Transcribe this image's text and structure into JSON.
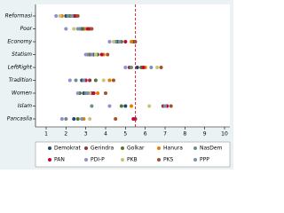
{
  "chart_data": {
    "type": "dot",
    "categories": [
      "Reformasi",
      "Poor",
      "Economy",
      "Statism",
      "LeftRight",
      "Tradition",
      "Women",
      "Islam",
      "Pancasila"
    ],
    "series": [
      {
        "name": "Demokrat",
        "color": "#1a476f",
        "values": [
          2.0,
          2.8,
          4.6,
          3.4,
          5.6,
          2.8,
          2.9,
          5.0,
          2.4
        ]
      },
      {
        "name": "Gerindra",
        "color": "#90353b",
        "values": [
          2.5,
          3.2,
          5.4,
          3.2,
          5.2,
          3.2,
          3.3,
          6.9,
          5.5
        ]
      },
      {
        "name": "Golkar",
        "color": "#55752f",
        "values": [
          2.2,
          2.9,
          4.8,
          3.6,
          5.8,
          3.5,
          2.7,
          4.8,
          2.6
        ]
      },
      {
        "name": "Hanura",
        "color": "#e37e00",
        "values": [
          1.8,
          3.0,
          5.3,
          3.9,
          6.0,
          4.2,
          3.6,
          5.3,
          2.9
        ]
      },
      {
        "name": "NasDem",
        "color": "#6e8e84",
        "values": [
          2.1,
          2.7,
          4.5,
          3.1,
          5.3,
          2.5,
          3.0,
          3.3,
          2.0
        ]
      },
      {
        "name": "PAN",
        "color": "#c10534",
        "values": [
          2.4,
          3.1,
          5.0,
          3.8,
          5.9,
          3.0,
          3.4,
          7.1,
          5.4
        ]
      },
      {
        "name": "PDI-P",
        "color": "#938dd2",
        "values": [
          1.5,
          2.0,
          4.2,
          3.0,
          5.0,
          2.2,
          2.6,
          4.2,
          1.8
        ]
      },
      {
        "name": "PKB",
        "color": "#cac27e",
        "values": [
          1.7,
          2.4,
          4.4,
          3.5,
          6.6,
          3.9,
          3.2,
          6.2,
          3.2
        ]
      },
      {
        "name": "PKS",
        "color": "#a0522d",
        "values": [
          2.6,
          3.3,
          5.5,
          4.1,
          6.8,
          4.4,
          4.0,
          7.3,
          4.5
        ]
      },
      {
        "name": "PPP",
        "color": "#7b92a8",
        "values": [
          2.3,
          2.6,
          4.7,
          3.3,
          6.3,
          2.9,
          3.1,
          7.0,
          2.8
        ]
      }
    ],
    "xlim": [
      1,
      10
    ],
    "xticks": [
      1,
      2,
      3,
      4,
      5,
      6,
      7,
      8,
      9,
      10
    ],
    "reference_line": 5.5,
    "reference_color": "#e8283c"
  }
}
